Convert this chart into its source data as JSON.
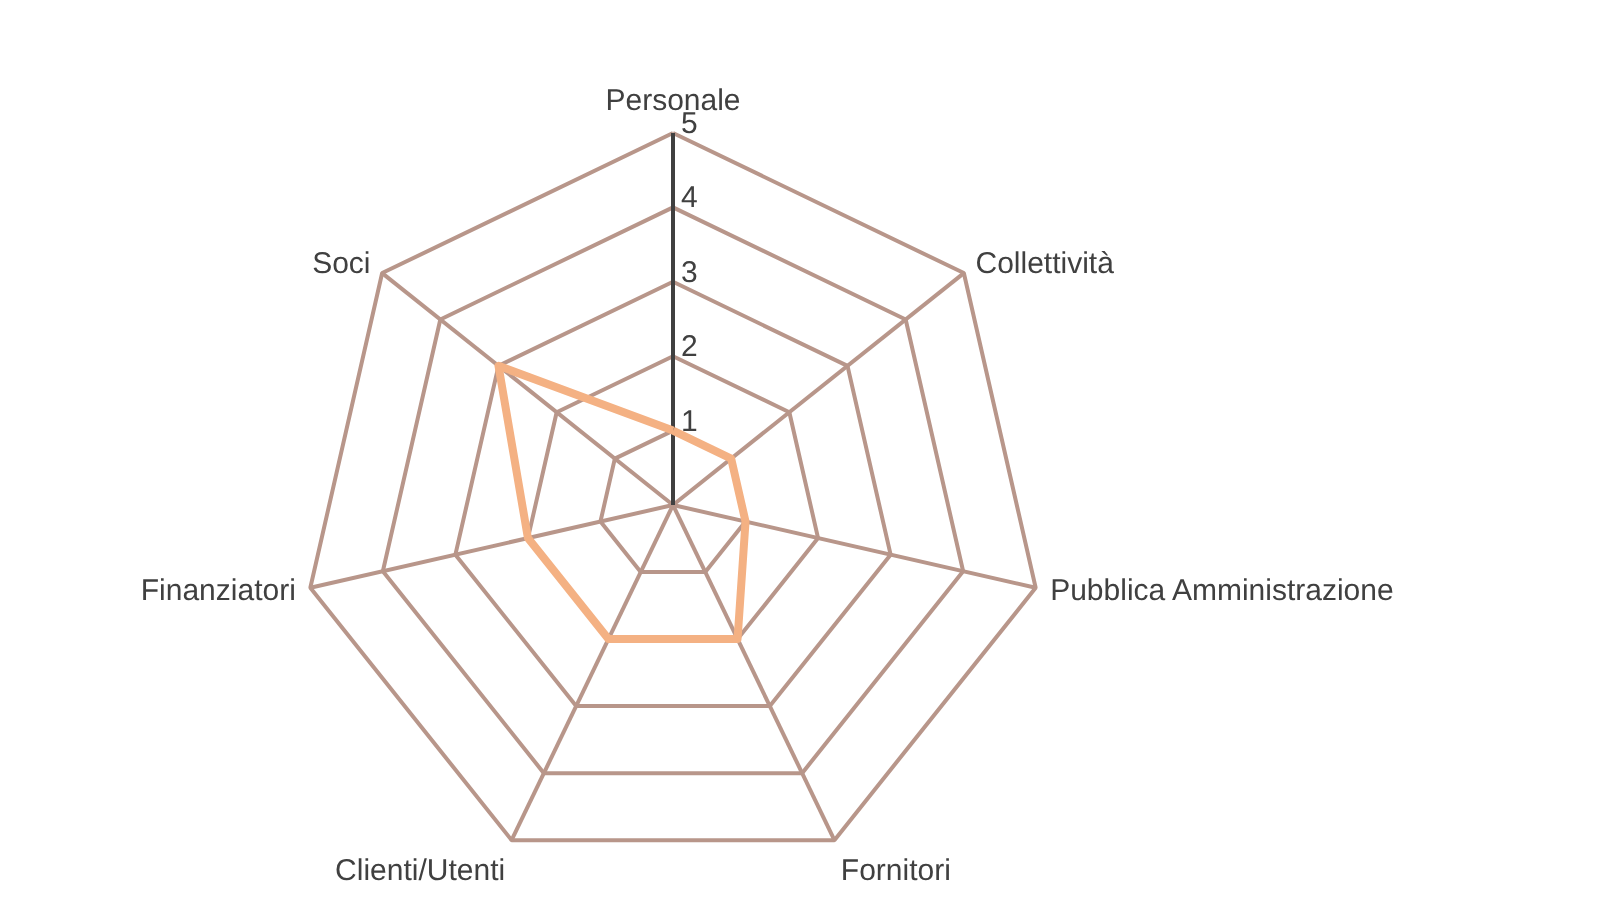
{
  "chart_data": {
    "type": "radar",
    "categories": [
      "Personale",
      "Collettività",
      "Pubblica Amministrazione",
      "Fornitori",
      "Clienti/Utenti",
      "Finanziatori",
      "Soci"
    ],
    "series": [
      {
        "color": "#f4b183",
        "values": [
          1,
          1,
          1,
          2,
          2,
          2,
          3
        ]
      }
    ],
    "ylim": [
      0,
      5
    ],
    "yticks": [
      1,
      2,
      3,
      4,
      5
    ],
    "grid": true
  }
}
